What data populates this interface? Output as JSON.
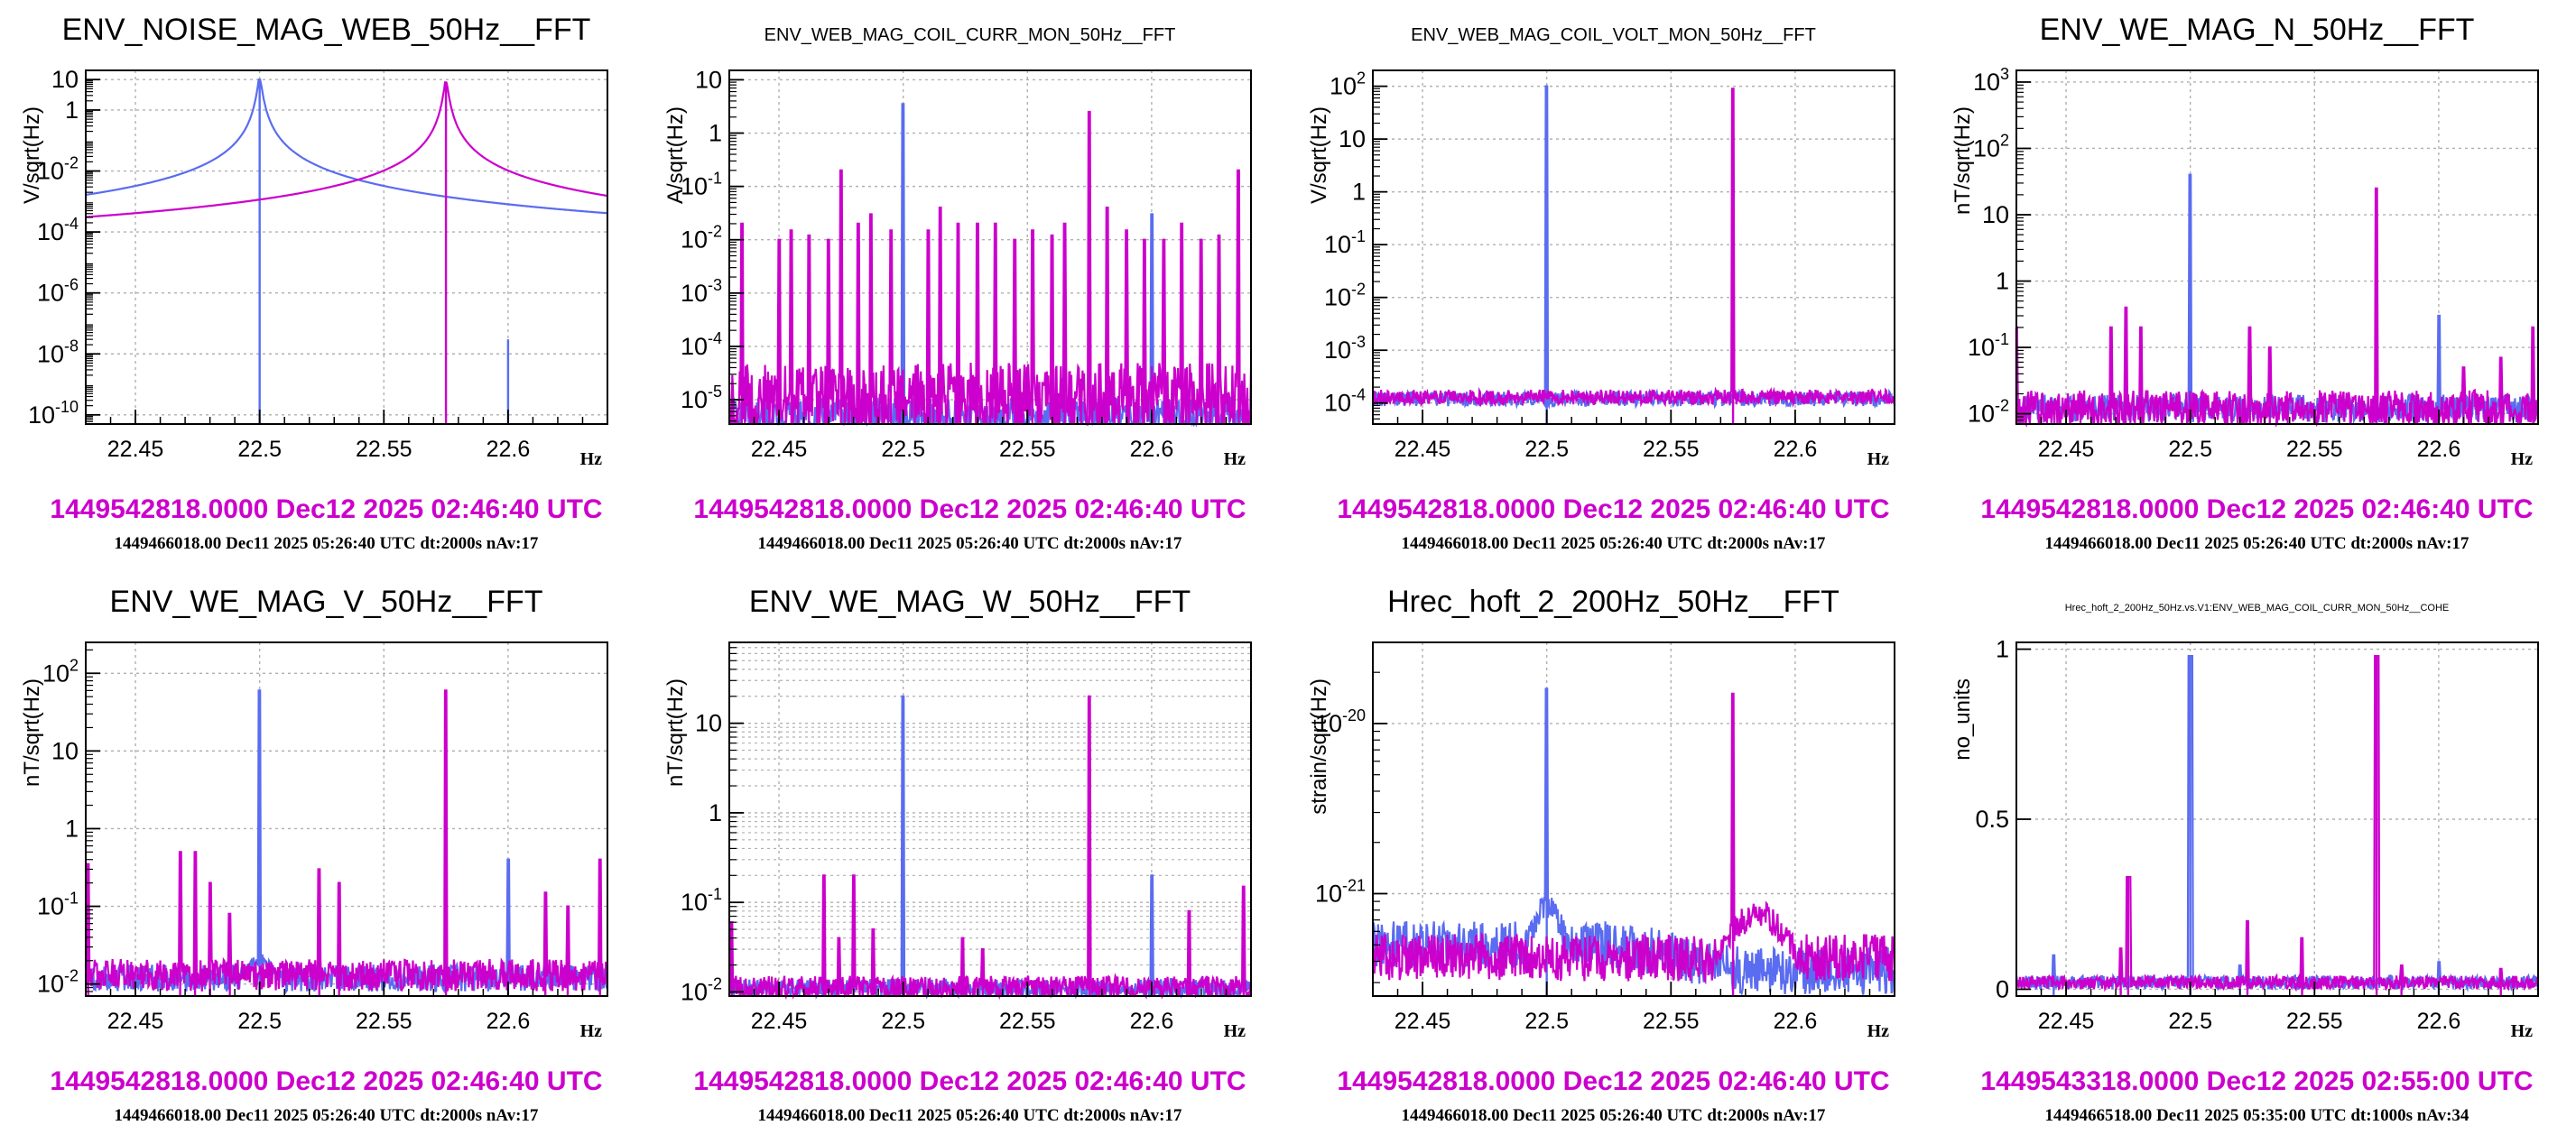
{
  "colors": {
    "blue": "#5a6cf0",
    "magenta": "#cc00cc",
    "grid": "#b0b0b0",
    "stamp": "#cc00cc"
  },
  "panels": [
    {
      "title": "ENV_NOISE_MAG_WEB_50Hz__FFT",
      "title_size": "large",
      "timestamp_main": "1449542818.0000 Dec12 2025 02:46:40 UTC",
      "timestamp_ref": "1449466018.00 Dec11 2025 05:26:40 UTC dt:2000s nAv:17",
      "chart_data": {
        "type": "line",
        "ylabel": "V/sqrt(Hz)",
        "xlabel": "Hz",
        "xlim": [
          22.43,
          22.64
        ],
        "x_ticks": [
          22.45,
          22.5,
          22.55,
          22.6
        ],
        "x_tick_labels": [
          "22.45",
          "22.5",
          "22.55",
          "22.6"
        ],
        "yscale": "log",
        "ylim": [
          5e-11,
          20
        ],
        "y_ticks": [
          1e-10,
          1e-08,
          1e-06,
          0.0001,
          0.01,
          1,
          10
        ],
        "y_tick_labels": [
          "10^-10",
          "10^-8",
          "10^-6",
          "10^-4",
          "10^-2",
          "1",
          "10"
        ],
        "grid": true,
        "minor_grid": false,
        "series": [
          {
            "color": "blue",
            "baseline": 5e-09,
            "baseline_right": 2e-10,
            "noise": 0.1,
            "peaks": [
              {
                "x": 22.5,
                "y": 10,
                "lorentz": true
              },
              {
                "x": 22.6,
                "y": 3e-08
              }
            ]
          },
          {
            "color": "magenta",
            "baseline": 2e-08,
            "noise": 0.5,
            "peaks": [
              {
                "x": 22.575,
                "y": 8,
                "lorentz": true
              }
            ]
          }
        ]
      }
    },
    {
      "title": "ENV_WEB_MAG_COIL_CURR_MON_50Hz__FFT",
      "title_size": "small",
      "timestamp_main": "1449542818.0000 Dec12 2025 02:46:40 UTC",
      "timestamp_ref": "1449466018.00 Dec11 2025 05:26:40 UTC dt:2000s nAv:17",
      "chart_data": {
        "type": "line",
        "ylabel": "A/sqrt(Hz)",
        "xlabel": "Hz",
        "xlim": [
          22.43,
          22.64
        ],
        "x_ticks": [
          22.45,
          22.5,
          22.55,
          22.6
        ],
        "x_tick_labels": [
          "22.45",
          "22.5",
          "22.55",
          "22.6"
        ],
        "yscale": "log",
        "ylim": [
          3.5e-06,
          15
        ],
        "y_ticks": [
          1e-05,
          0.0001,
          0.001,
          0.01,
          0.1,
          1,
          10
        ],
        "y_tick_labels": [
          "10^-5",
          "10^-4",
          "10^-3",
          "10^-2",
          "10^-1",
          "1",
          "10"
        ],
        "grid": true,
        "minor_grid": false,
        "series": [
          {
            "color": "blue",
            "baseline": 5e-06,
            "noise": 0.5,
            "peaks": [
              {
                "x": 22.5,
                "y": 3.5
              },
              {
                "x": 22.6,
                "y": 0.03
              }
            ]
          },
          {
            "color": "magenta",
            "baseline": 1e-05,
            "noise": 1.0,
            "peaks": [
              {
                "x": 22.435,
                "y": 0.02
              },
              {
                "x": 22.45,
                "y": 0.01
              },
              {
                "x": 22.455,
                "y": 0.015
              },
              {
                "x": 22.462,
                "y": 0.012
              },
              {
                "x": 22.47,
                "y": 0.01
              },
              {
                "x": 22.475,
                "y": 0.2
              },
              {
                "x": 22.482,
                "y": 0.02
              },
              {
                "x": 22.487,
                "y": 0.03
              },
              {
                "x": 22.495,
                "y": 0.015
              },
              {
                "x": 22.51,
                "y": 0.015
              },
              {
                "x": 22.515,
                "y": 0.04
              },
              {
                "x": 22.522,
                "y": 0.02
              },
              {
                "x": 22.53,
                "y": 0.02
              },
              {
                "x": 22.537,
                "y": 0.02
              },
              {
                "x": 22.545,
                "y": 0.01
              },
              {
                "x": 22.552,
                "y": 0.015
              },
              {
                "x": 22.56,
                "y": 0.012
              },
              {
                "x": 22.565,
                "y": 0.02
              },
              {
                "x": 22.575,
                "y": 2.5
              },
              {
                "x": 22.582,
                "y": 0.04
              },
              {
                "x": 22.59,
                "y": 0.015
              },
              {
                "x": 22.597,
                "y": 0.01
              },
              {
                "x": 22.605,
                "y": 0.01
              },
              {
                "x": 22.612,
                "y": 0.02
              },
              {
                "x": 22.62,
                "y": 0.01
              },
              {
                "x": 22.627,
                "y": 0.012
              },
              {
                "x": 22.635,
                "y": 0.2
              }
            ]
          }
        ]
      }
    },
    {
      "title": "ENV_WEB_MAG_COIL_VOLT_MON_50Hz__FFT",
      "title_size": "small",
      "timestamp_main": "1449542818.0000 Dec12 2025 02:46:40 UTC",
      "timestamp_ref": "1449466018.00 Dec11 2025 05:26:40 UTC dt:2000s nAv:17",
      "chart_data": {
        "type": "line",
        "ylabel": "V/sqrt(Hz)",
        "xlabel": "Hz",
        "xlim": [
          22.43,
          22.64
        ],
        "x_ticks": [
          22.45,
          22.5,
          22.55,
          22.6
        ],
        "x_tick_labels": [
          "22.45",
          "22.5",
          "22.55",
          "22.6"
        ],
        "yscale": "log",
        "ylim": [
          4e-05,
          200
        ],
        "y_ticks": [
          0.0001,
          0.001,
          0.01,
          0.1,
          1,
          10,
          100
        ],
        "y_tick_labels": [
          "10^-4",
          "10^-3",
          "10^-2",
          "10^-1",
          "1",
          "10",
          "10^2"
        ],
        "grid": true,
        "minor_grid": false,
        "series": [
          {
            "color": "blue",
            "baseline": 0.00012,
            "noise": 0.2,
            "peaks": [
              {
                "x": 22.5,
                "y": 100
              }
            ]
          },
          {
            "color": "magenta",
            "baseline": 0.00013,
            "noise": 0.2,
            "peaks": [
              {
                "x": 22.575,
                "y": 90
              }
            ]
          }
        ]
      }
    },
    {
      "title": "ENV_WE_MAG_N_50Hz__FFT",
      "title_size": "large",
      "timestamp_main": "1449542818.0000 Dec12 2025 02:46:40 UTC",
      "timestamp_ref": "1449466018.00 Dec11 2025 05:26:40 UTC dt:2000s nAv:17",
      "chart_data": {
        "type": "line",
        "ylabel": "nT/sqrt(Hz)",
        "xlabel": "Hz",
        "xlim": [
          22.43,
          22.64
        ],
        "x_ticks": [
          22.45,
          22.5,
          22.55,
          22.6
        ],
        "x_tick_labels": [
          "22.45",
          "22.5",
          "22.55",
          "22.6"
        ],
        "yscale": "log",
        "ylim": [
          0.007,
          1500
        ],
        "y_ticks": [
          0.01,
          0.1,
          1,
          10,
          100,
          1000
        ],
        "y_tick_labels": [
          "10^-2",
          "10^-1",
          "1",
          "10",
          "10^2",
          "10^3"
        ],
        "grid": true,
        "minor_grid": false,
        "series": [
          {
            "color": "blue",
            "baseline": 0.012,
            "noise": 0.3,
            "peaks": [
              {
                "x": 22.5,
                "y": 40
              },
              {
                "x": 22.6,
                "y": 0.3
              }
            ]
          },
          {
            "color": "magenta",
            "baseline": 0.012,
            "noise": 0.4,
            "peaks": [
              {
                "x": 22.43,
                "y": 0.2
              },
              {
                "x": 22.468,
                "y": 0.2
              },
              {
                "x": 22.474,
                "y": 0.4
              },
              {
                "x": 22.48,
                "y": 0.2
              },
              {
                "x": 22.524,
                "y": 0.2
              },
              {
                "x": 22.532,
                "y": 0.1
              },
              {
                "x": 22.575,
                "y": 25
              },
              {
                "x": 22.61,
                "y": 0.05
              },
              {
                "x": 22.625,
                "y": 0.07
              },
              {
                "x": 22.638,
                "y": 0.2
              }
            ]
          }
        ]
      }
    },
    {
      "title": "ENV_WE_MAG_V_50Hz__FFT",
      "title_size": "large",
      "timestamp_main": "1449542818.0000 Dec12 2025 02:46:40 UTC",
      "timestamp_ref": "1449466018.00 Dec11 2025 05:26:40 UTC dt:2000s nAv:17",
      "chart_data": {
        "type": "line",
        "ylabel": "nT/sqrt(Hz)",
        "xlabel": "Hz",
        "xlim": [
          22.43,
          22.64
        ],
        "x_ticks": [
          22.45,
          22.5,
          22.55,
          22.6
        ],
        "x_tick_labels": [
          "22.45",
          "22.5",
          "22.55",
          "22.6"
        ],
        "yscale": "log",
        "ylim": [
          0.007,
          250
        ],
        "y_ticks": [
          0.01,
          0.1,
          1,
          10,
          100
        ],
        "y_tick_labels": [
          "10^-2",
          "10^-1",
          "1",
          "10",
          "10^2"
        ],
        "grid": true,
        "minor_grid": false,
        "series": [
          {
            "color": "blue",
            "baseline": 0.012,
            "noise": 0.25,
            "bump": {
              "x": 22.5,
              "y": 0.02,
              "w": 0.01
            },
            "peaks": [
              {
                "x": 22.5,
                "y": 60
              },
              {
                "x": 22.6,
                "y": 0.4
              }
            ]
          },
          {
            "color": "magenta",
            "baseline": 0.013,
            "noise": 0.3,
            "peaks": [
              {
                "x": 22.431,
                "y": 0.35
              },
              {
                "x": 22.468,
                "y": 0.5
              },
              {
                "x": 22.474,
                "y": 0.5
              },
              {
                "x": 22.48,
                "y": 0.2
              },
              {
                "x": 22.488,
                "y": 0.08
              },
              {
                "x": 22.524,
                "y": 0.3
              },
              {
                "x": 22.532,
                "y": 0.2
              },
              {
                "x": 22.575,
                "y": 60
              },
              {
                "x": 22.615,
                "y": 0.15
              },
              {
                "x": 22.624,
                "y": 0.1
              },
              {
                "x": 22.637,
                "y": 0.4
              }
            ]
          }
        ]
      }
    },
    {
      "title": "ENV_WE_MAG_W_50Hz__FFT",
      "title_size": "large",
      "timestamp_main": "1449542818.0000 Dec12 2025 02:46:40 UTC",
      "timestamp_ref": "1449466018.00 Dec11 2025 05:26:40 UTC dt:2000s nAv:17",
      "chart_data": {
        "type": "line",
        "ylabel": "nT/sqrt(Hz)",
        "xlabel": "Hz",
        "xlim": [
          22.43,
          22.64
        ],
        "x_ticks": [
          22.45,
          22.5,
          22.55,
          22.6
        ],
        "x_tick_labels": [
          "22.45",
          "22.5",
          "22.55",
          "22.6"
        ],
        "yscale": "log",
        "ylim": [
          0.009,
          80
        ],
        "y_ticks": [
          0.01,
          0.1,
          1,
          10
        ],
        "y_tick_labels": [
          "10^-2",
          "10^-1",
          "1",
          "10"
        ],
        "grid": true,
        "minor_grid": true,
        "series": [
          {
            "color": "blue",
            "baseline": 0.011,
            "noise": 0.15,
            "peaks": [
              {
                "x": 22.5,
                "y": 20
              },
              {
                "x": 22.6,
                "y": 0.2
              }
            ]
          },
          {
            "color": "magenta",
            "baseline": 0.011,
            "noise": 0.2,
            "peaks": [
              {
                "x": 22.431,
                "y": 0.06
              },
              {
                "x": 22.468,
                "y": 0.2
              },
              {
                "x": 22.474,
                "y": 0.04
              },
              {
                "x": 22.48,
                "y": 0.2
              },
              {
                "x": 22.488,
                "y": 0.05
              },
              {
                "x": 22.524,
                "y": 0.04
              },
              {
                "x": 22.532,
                "y": 0.03
              },
              {
                "x": 22.575,
                "y": 20
              },
              {
                "x": 22.615,
                "y": 0.08
              },
              {
                "x": 22.637,
                "y": 0.15
              }
            ]
          }
        ]
      }
    },
    {
      "title": "Hrec_hoft_2_200Hz_50Hz__FFT",
      "title_size": "large",
      "timestamp_main": "1449542818.0000 Dec12 2025 02:46:40 UTC",
      "timestamp_ref": "1449466018.00 Dec11 2025 05:26:40 UTC dt:2000s nAv:17",
      "chart_data": {
        "type": "line",
        "ylabel": "strain/sqrt(Hz)",
        "xlabel": "Hz",
        "xlim": [
          22.43,
          22.64
        ],
        "x_ticks": [
          22.45,
          22.5,
          22.55,
          22.6
        ],
        "x_tick_labels": [
          "22.45",
          "22.5",
          "22.55",
          "22.6"
        ],
        "yscale": "log",
        "ylim": [
          2.5e-22,
          3e-20
        ],
        "y_ticks": [
          1e-21,
          1e-20
        ],
        "y_tick_labels": [
          "10^-21",
          "10^-20"
        ],
        "grid": true,
        "minor_grid": false,
        "series": [
          {
            "color": "blue",
            "baseline": 5e-22,
            "noise": 0.2,
            "bump": {
              "x": 22.5,
              "y": 8e-22,
              "w": 0.012
            },
            "trend_right": 3.5e-22,
            "peaks": [
              {
                "x": 22.5,
                "y": 1.6e-20
              }
            ]
          },
          {
            "color": "magenta",
            "baseline": 4.2e-22,
            "noise": 0.2,
            "bump": {
              "x": 22.585,
              "y": 7.5e-22,
              "w": 0.02
            },
            "peaks": [
              {
                "x": 22.575,
                "y": 1.5e-20
              }
            ]
          }
        ]
      }
    },
    {
      "title": "Hrec_hoft_2_200Hz_50Hz.vs.V1:ENV_WEB_MAG_COIL_CURR_MON_50Hz__COHE",
      "title_size": "tiny",
      "timestamp_main": "1449543318.0000 Dec12 2025 02:55:00 UTC",
      "timestamp_ref": "1449466518.00 Dec11 2025 05:35:00 UTC dt:1000s nAv:34",
      "chart_data": {
        "type": "line",
        "ylabel": "no_units",
        "xlabel": "Hz",
        "xlim": [
          22.43,
          22.64
        ],
        "x_ticks": [
          22.45,
          22.5,
          22.55,
          22.6
        ],
        "x_tick_labels": [
          "22.45",
          "22.5",
          "22.55",
          "22.6"
        ],
        "yscale": "linear",
        "ylim": [
          -0.02,
          1.02
        ],
        "y_ticks": [
          0,
          0.5,
          1
        ],
        "y_tick_labels": [
          "0",
          "0.5",
          "1"
        ],
        "grid": true,
        "minor_grid": false,
        "series": [
          {
            "color": "blue",
            "baseline": 0.02,
            "noise": 0.02,
            "peaks": [
              {
                "x": 22.5,
                "y": 0.98,
                "w": 2
              },
              {
                "x": 22.445,
                "y": 0.1
              },
              {
                "x": 22.52,
                "y": 0.07
              },
              {
                "x": 22.6,
                "y": 0.08
              }
            ]
          },
          {
            "color": "magenta",
            "baseline": 0.02,
            "noise": 0.02,
            "peaks": [
              {
                "x": 22.575,
                "y": 0.98,
                "w": 2
              },
              {
                "x": 22.475,
                "y": 0.33,
                "w": 2
              },
              {
                "x": 22.472,
                "y": 0.12
              },
              {
                "x": 22.523,
                "y": 0.2
              },
              {
                "x": 22.545,
                "y": 0.15
              },
              {
                "x": 22.585,
                "y": 0.07
              },
              {
                "x": 22.625,
                "y": 0.06
              }
            ]
          }
        ]
      }
    }
  ]
}
